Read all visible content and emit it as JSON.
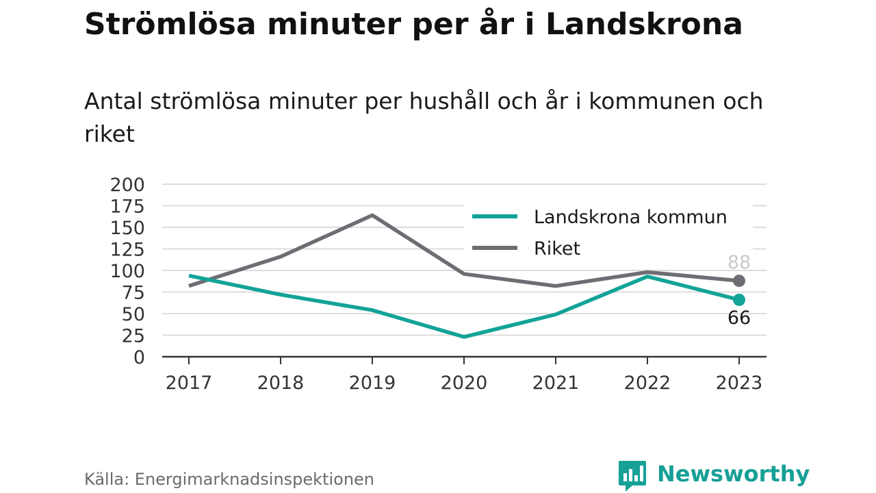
{
  "title": "Strömlösa minuter per år i Landskrona",
  "subtitle": "Antal strömlösa minuter per hushåll och år i kommunen och riket",
  "source": "Källa: Energimarknadsinspektionen",
  "brand": {
    "name": "Newsworthy",
    "icon": "newsworthy-logo-icon",
    "color": "#17a096"
  },
  "chart_data": {
    "type": "line",
    "categories": [
      "2017",
      "2018",
      "2019",
      "2020",
      "2021",
      "2022",
      "2023"
    ],
    "y_ticks": [
      "0",
      "25",
      "50",
      "75",
      "100",
      "125",
      "150",
      "175",
      "200"
    ],
    "ylim": [
      0,
      200
    ],
    "grid": true,
    "legend_position": "top-right",
    "series": [
      {
        "name": "Landskrona kommun",
        "color": "#13a398",
        "values": [
          94,
          72,
          54,
          23,
          49,
          93,
          66
        ],
        "end_label": "66"
      },
      {
        "name": "Riket",
        "color": "#6e6d73",
        "values": [
          82,
          116,
          164,
          96,
          82,
          98,
          88
        ],
        "end_label": "88"
      }
    ]
  }
}
